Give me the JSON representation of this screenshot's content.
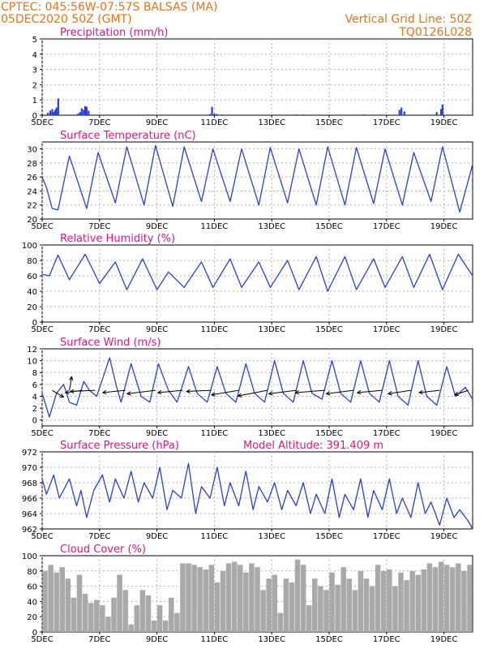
{
  "header": {
    "line1_left": "CPTEC:   045:56W-07:57S   BALSAS (MA)",
    "line2_left": "05DEC2020 50Z (GMT)",
    "line1_right": "Vertical Grid Line: 50Z",
    "line2_right": "TQ0126L028"
  },
  "colors": {
    "header_text": "#e8731a",
    "panel_title": "#e0147a",
    "series_line": "#2a3fd8",
    "precip_bar": "#2a3fd8",
    "cloud_bar": "#a9a9a9",
    "grid": "#b0b0b0",
    "wind_arrow": "#000000"
  },
  "x_axis": {
    "tick_labels": [
      "5DEC",
      "7DEC",
      "9DEC",
      "11DEC",
      "13DEC",
      "15DEC",
      "17DEC",
      "19DEC"
    ],
    "tick_days": [
      0,
      2,
      4,
      6,
      8,
      10,
      12,
      14
    ],
    "range_days": [
      0,
      15
    ]
  },
  "chart_data": [
    {
      "id": "precip",
      "type": "bar",
      "title": "Precipitation (mm/h)",
      "ylim": [
        0,
        5
      ],
      "yticks": [
        0,
        1,
        2,
        3,
        4,
        5
      ],
      "grid": true,
      "x": [
        0.2,
        0.28,
        0.35,
        0.4,
        0.45,
        0.5,
        0.56,
        1.25,
        1.32,
        1.38,
        1.45,
        1.5,
        1.55,
        1.62,
        5.85,
        5.92,
        6.0,
        6.08,
        6.25,
        8.85,
        9.1,
        11.2,
        12.45,
        12.52,
        12.62,
        13.75,
        13.9,
        13.95
      ],
      "values": [
        0.15,
        0.3,
        0.4,
        0.2,
        0.35,
        0.5,
        1.1,
        0.1,
        0.2,
        0.45,
        0.35,
        0.6,
        0.55,
        0.3,
        0.08,
        0.55,
        0.1,
        0.08,
        0.05,
        0.05,
        0.05,
        0.05,
        0.35,
        0.5,
        0.25,
        0.2,
        0.4,
        0.7
      ]
    },
    {
      "id": "temp",
      "type": "line",
      "title": "Surface Temperature (nC)",
      "ylim": [
        20,
        31
      ],
      "yticks": [
        20,
        22,
        24,
        26,
        28,
        30
      ],
      "grid": true,
      "x": [
        0,
        0.15,
        0.35,
        0.55,
        0.95,
        1.55,
        1.95,
        2.55,
        2.95,
        3.55,
        3.95,
        4.55,
        4.95,
        5.55,
        5.95,
        6.55,
        6.95,
        7.55,
        7.95,
        8.55,
        8.95,
        9.55,
        9.95,
        10.55,
        10.95,
        11.55,
        11.95,
        12.55,
        12.95,
        13.55,
        13.95,
        14.55,
        15
      ],
      "values": [
        26.0,
        24.5,
        21.5,
        21.3,
        29.0,
        21.5,
        29.5,
        22.3,
        30.3,
        22.0,
        30.5,
        21.8,
        30.3,
        22.5,
        30.0,
        22.5,
        30.0,
        22.0,
        30.2,
        22.3,
        30.0,
        22.0,
        30.3,
        22.0,
        30.2,
        22.2,
        30.0,
        22.0,
        29.5,
        22.5,
        30.3,
        21.0,
        27.8
      ]
    },
    {
      "id": "rh",
      "type": "line",
      "title": "Relative Humidity (%)",
      "ylim": [
        0,
        100
      ],
      "yticks": [
        0,
        20,
        40,
        60,
        80,
        100
      ],
      "grid": true,
      "x": [
        0,
        0.25,
        0.55,
        0.95,
        1.5,
        2.0,
        2.55,
        2.95,
        3.5,
        4.0,
        4.4,
        4.95,
        5.55,
        5.95,
        6.55,
        6.95,
        7.55,
        7.95,
        8.55,
        8.95,
        9.55,
        9.95,
        10.55,
        10.95,
        11.55,
        11.95,
        12.55,
        12.95,
        13.5,
        13.95,
        14.5,
        15
      ],
      "values": [
        62,
        60,
        87,
        55,
        88,
        50,
        78,
        42,
        82,
        42,
        65,
        45,
        78,
        45,
        82,
        45,
        78,
        45,
        80,
        42,
        85,
        40,
        85,
        42,
        82,
        45,
        85,
        45,
        88,
        42,
        88,
        60
      ]
    },
    {
      "id": "wind",
      "type": "line",
      "title": "Surface Wind (m/s)",
      "ylim": [
        -1,
        12
      ],
      "yticks": [
        0,
        2,
        4,
        6,
        8,
        10,
        12
      ],
      "grid": true,
      "x": [
        0,
        0.25,
        0.5,
        0.75,
        0.95,
        1.2,
        1.45,
        1.65,
        1.9,
        2.35,
        2.6,
        2.75,
        3.1,
        3.45,
        3.75,
        4.05,
        4.4,
        4.7,
        5.1,
        5.4,
        5.75,
        6.1,
        6.4,
        6.75,
        7.1,
        7.4,
        7.75,
        8.1,
        8.4,
        8.75,
        9.1,
        9.4,
        9.75,
        10.1,
        10.4,
        10.75,
        11.1,
        11.4,
        11.75,
        12.1,
        12.4,
        12.75,
        13.1,
        13.4,
        13.75,
        14.1,
        14.4,
        14.75,
        15
      ],
      "values": [
        4.5,
        0.5,
        4.5,
        6.0,
        3.0,
        2.5,
        6.5,
        5.0,
        4.0,
        10.5,
        5.5,
        3.0,
        9.5,
        4.0,
        3.0,
        9.5,
        5.0,
        3.0,
        9.0,
        4.5,
        3.0,
        9.0,
        4.5,
        3.0,
        9.5,
        4.5,
        3.0,
        10.0,
        4.5,
        3.0,
        10.0,
        4.5,
        3.5,
        10.0,
        4.5,
        3.0,
        10.0,
        4.5,
        3.0,
        10.0,
        4.0,
        2.5,
        10.0,
        4.0,
        2.5,
        9.0,
        4.0,
        5.5,
        3.5
      ],
      "vectors": {
        "x": [
          0.35,
          0.95,
          1.4,
          1.85,
          2.9,
          3.95,
          4.9,
          5.9,
          6.85,
          7.85,
          8.85,
          9.85,
          10.85,
          11.85,
          12.85,
          13.85,
          14.85
        ],
        "u": [
          -1.0,
          -0.2,
          1.5,
          2.2,
          2.0,
          2.5,
          2.2,
          2.2,
          2.4,
          2.6,
          2.4,
          2.6,
          2.4,
          2.2,
          2.0,
          1.8,
          1.2
        ],
        "v": [
          0.6,
          -1.2,
          0.2,
          0.1,
          0.2,
          0.3,
          0.2,
          0.1,
          0.4,
          0.5,
          0.3,
          0.2,
          0.3,
          0.2,
          0.3,
          0.2,
          0.4
        ]
      }
    },
    {
      "id": "pres",
      "type": "line",
      "title": "Surface Pressure (hPa)",
      "annotation": "Model Altitude: 391.409 m",
      "ylim": [
        962,
        972
      ],
      "yticks": [
        962,
        964,
        966,
        968,
        970,
        972
      ],
      "grid": true,
      "x": [
        0,
        0.15,
        0.4,
        0.6,
        0.95,
        1.2,
        1.35,
        1.55,
        1.8,
        2.1,
        2.35,
        2.55,
        2.85,
        3.1,
        3.35,
        3.55,
        3.85,
        4.1,
        4.35,
        4.55,
        4.85,
        5.1,
        5.35,
        5.55,
        5.85,
        6.1,
        6.35,
        6.55,
        6.85,
        7.1,
        7.35,
        7.55,
        7.85,
        8.1,
        8.35,
        8.55,
        8.85,
        9.1,
        9.35,
        9.55,
        9.85,
        10.1,
        10.35,
        10.55,
        10.85,
        11.1,
        11.35,
        11.55,
        11.85,
        12.1,
        12.35,
        12.55,
        12.85,
        13.1,
        13.35,
        13.55,
        13.85,
        14.1,
        14.35,
        14.55,
        14.85,
        15
      ],
      "values": [
        968.5,
        966.5,
        969.0,
        966.0,
        968.5,
        965.0,
        967.0,
        963.5,
        967.0,
        969.0,
        965.5,
        968.5,
        966.0,
        969.5,
        965.5,
        968.0,
        966.0,
        970.0,
        964.5,
        967.0,
        966.0,
        970.5,
        964.0,
        967.5,
        966.0,
        970.0,
        965.0,
        968.0,
        965.0,
        969.5,
        964.5,
        967.5,
        965.5,
        968.0,
        964.5,
        967.0,
        965.0,
        968.0,
        964.0,
        966.5,
        964.0,
        968.5,
        963.5,
        966.5,
        964.5,
        968.5,
        963.5,
        967.0,
        964.5,
        968.5,
        964.0,
        966.0,
        963.5,
        968.0,
        964.0,
        965.5,
        962.5,
        966.0,
        963.5,
        964.5,
        963.0,
        962.0
      ]
    },
    {
      "id": "cloud",
      "type": "bar",
      "title": "Cloud Cover (%)",
      "ylim": [
        0,
        100
      ],
      "yticks": [
        0,
        20,
        40,
        60,
        80,
        100
      ],
      "grid": true,
      "x": [
        0.1,
        0.3,
        0.5,
        0.7,
        0.9,
        1.1,
        1.3,
        1.5,
        1.7,
        1.9,
        2.1,
        2.3,
        2.5,
        2.7,
        2.9,
        3.1,
        3.3,
        3.5,
        3.7,
        3.9,
        4.1,
        4.3,
        4.5,
        4.7,
        4.9,
        5.1,
        5.3,
        5.5,
        5.7,
        5.9,
        6.1,
        6.3,
        6.5,
        6.7,
        6.9,
        7.1,
        7.3,
        7.5,
        7.7,
        7.9,
        8.1,
        8.3,
        8.5,
        8.7,
        8.9,
        9.1,
        9.3,
        9.5,
        9.7,
        9.9,
        10.1,
        10.3,
        10.5,
        10.7,
        10.9,
        11.1,
        11.3,
        11.5,
        11.7,
        11.9,
        12.1,
        12.3,
        12.5,
        12.7,
        12.9,
        13.1,
        13.3,
        13.5,
        13.7,
        13.9,
        14.1,
        14.3,
        14.5,
        14.7,
        14.9
      ],
      "values": [
        80,
        88,
        78,
        85,
        70,
        45,
        75,
        50,
        38,
        42,
        35,
        20,
        45,
        75,
        55,
        10,
        35,
        55,
        48,
        15,
        35,
        15,
        45,
        25,
        90,
        90,
        88,
        85,
        82,
        88,
        65,
        80,
        90,
        92,
        88,
        78,
        90,
        85,
        55,
        70,
        75,
        25,
        70,
        65,
        95,
        88,
        35,
        70,
        60,
        55,
        78,
        62,
        85,
        70,
        55,
        80,
        70,
        60,
        88,
        80,
        82,
        60,
        78,
        68,
        80,
        75,
        82,
        90,
        85,
        92,
        88,
        85,
        90,
        80,
        88
      ]
    }
  ]
}
